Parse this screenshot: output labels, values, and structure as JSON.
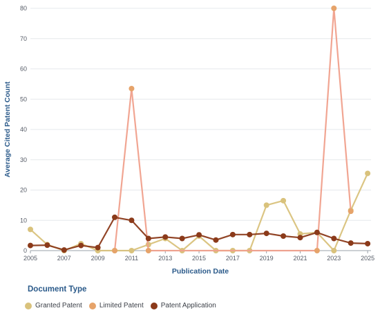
{
  "chart_data": {
    "type": "line",
    "xlabel": "Publication Date",
    "ylabel": "Average Cited Patent Count",
    "ylim": [
      0,
      80
    ],
    "y_ticks": [
      0,
      10,
      20,
      30,
      40,
      50,
      60,
      70,
      80
    ],
    "xlim": [
      2005,
      2025.2
    ],
    "x_ticks": [
      2005,
      2007,
      2009,
      2011,
      2013,
      2015,
      2017,
      2019,
      2021,
      2023,
      2025
    ],
    "grid": "horizontal",
    "legend_position": "bottom-left",
    "legend_title": "Document Type",
    "series": [
      {
        "name": "Granted Patent",
        "color": "#d9c27c",
        "line_color": "#d9c27c",
        "x": [
          2005,
          2006,
          2007,
          2008,
          2009,
          2010,
          2011,
          2012,
          2013,
          2014,
          2015,
          2016,
          2017,
          2018,
          2019,
          2020,
          2021,
          2022,
          2023,
          2024,
          2025
        ],
        "values": [
          7,
          2,
          0,
          2.3,
          0,
          0,
          0,
          2,
          4,
          0,
          4.8,
          0,
          0,
          0,
          15,
          16.5,
          5.5,
          6,
          0,
          13.3,
          25.5
        ]
      },
      {
        "name": "Limited Patent",
        "color": "#e6a36a",
        "line_color": "#f0a08c",
        "x": [
          2010,
          2011,
          2012,
          2022,
          2023,
          2024
        ],
        "values": [
          0,
          53.5,
          0,
          0,
          80,
          13
        ]
      },
      {
        "name": "Patent Application",
        "color": "#8b3a1a",
        "line_color": "#8b3a1a",
        "x": [
          2005,
          2006,
          2007,
          2008,
          2009,
          2010,
          2011,
          2012,
          2013,
          2014,
          2015,
          2016,
          2017,
          2018,
          2019,
          2020,
          2021,
          2022,
          2023,
          2024,
          2025
        ],
        "values": [
          1.7,
          1.8,
          0.2,
          1.7,
          1,
          11,
          10,
          4,
          4.5,
          4,
          5.2,
          3.5,
          5.3,
          5.3,
          5.7,
          4.8,
          4.3,
          6,
          4,
          2.5,
          2.3
        ]
      }
    ]
  }
}
